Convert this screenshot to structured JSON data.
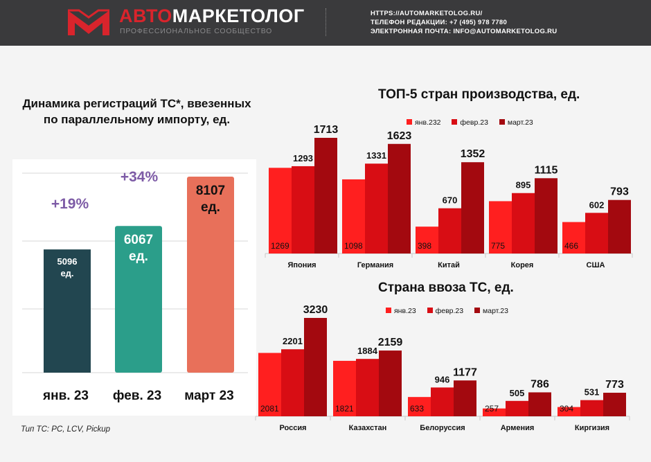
{
  "header": {
    "brand_prefix": "АВТО",
    "brand_suffix": "МАРКЕТОЛОГ",
    "tagline": "ПРОФЕССИОНАЛЬНОЕ СООБЩЕСТВО",
    "contacts": [
      "HTTPS://AUTOMARKETOLOG.RU/",
      "ТЕЛЕФОН РЕДАКЦИИ: +7 (495) 978 7780",
      "ЭЛЕКТРОННАЯ ПОЧТА: INFO@AUTOMARKETOLOG.RU"
    ]
  },
  "left": {
    "title_line1": "Динамика регистраций ТС*, ввезенных",
    "title_line2": "по параллельному импорту, ед.",
    "footnote": "Тип ТС: PC, LCV, Pickup"
  },
  "top5": {
    "title": "ТОП-5 стран производства, ед.",
    "legend": [
      "янв.232",
      "февр.23",
      "март.23"
    ]
  },
  "import": {
    "title": "Страна ввоза ТС, ед.",
    "legend": [
      "янв.23",
      "февр.23",
      "март.23"
    ]
  },
  "colors": {
    "jan": "#ff1f1f",
    "feb": "#d80d14",
    "mar": "#a3090f",
    "bar_jan": "#224650",
    "bar_feb": "#2b9e8a",
    "bar_mar": "#e8705a",
    "growth": "#7d5ba6"
  },
  "chart_data": [
    {
      "type": "bar",
      "title": "Динамика регистраций ТС*, ввезенных по параллельному импорту, ед.",
      "categories": [
        "янв. 23",
        "фев. 23",
        "март 23"
      ],
      "values": [
        5096,
        6067,
        8107
      ],
      "value_labels": [
        "5096\nед.",
        "6067\nед.",
        "8107\nед."
      ],
      "growth_labels": [
        "+19%",
        "+34%"
      ],
      "ylim": [
        0,
        9000
      ],
      "grid": true
    },
    {
      "type": "bar",
      "title": "ТОП-5 стран производства, ед.",
      "categories": [
        "Япония",
        "Германия",
        "Китай",
        "Корея",
        "США"
      ],
      "series": [
        {
          "name": "янв.232",
          "values": [
            1269,
            1098,
            398,
            775,
            466
          ]
        },
        {
          "name": "февр.23",
          "values": [
            1293,
            1331,
            670,
            895,
            602
          ]
        },
        {
          "name": "март.23",
          "values": [
            1713,
            1623,
            1352,
            1115,
            793
          ]
        }
      ],
      "legend": "top"
    },
    {
      "type": "bar",
      "title": "Страна ввоза ТС, ед.",
      "categories": [
        "Россия",
        "Казахстан",
        "Белоруссия",
        "Армения",
        "Киргизия"
      ],
      "series": [
        {
          "name": "янв.23",
          "values": [
            2081,
            1821,
            633,
            257,
            304
          ]
        },
        {
          "name": "февр.23",
          "values": [
            2201,
            1884,
            946,
            505,
            531
          ]
        },
        {
          "name": "март.23",
          "values": [
            3230,
            2159,
            1177,
            786,
            773
          ]
        }
      ],
      "legend": "top"
    }
  ]
}
